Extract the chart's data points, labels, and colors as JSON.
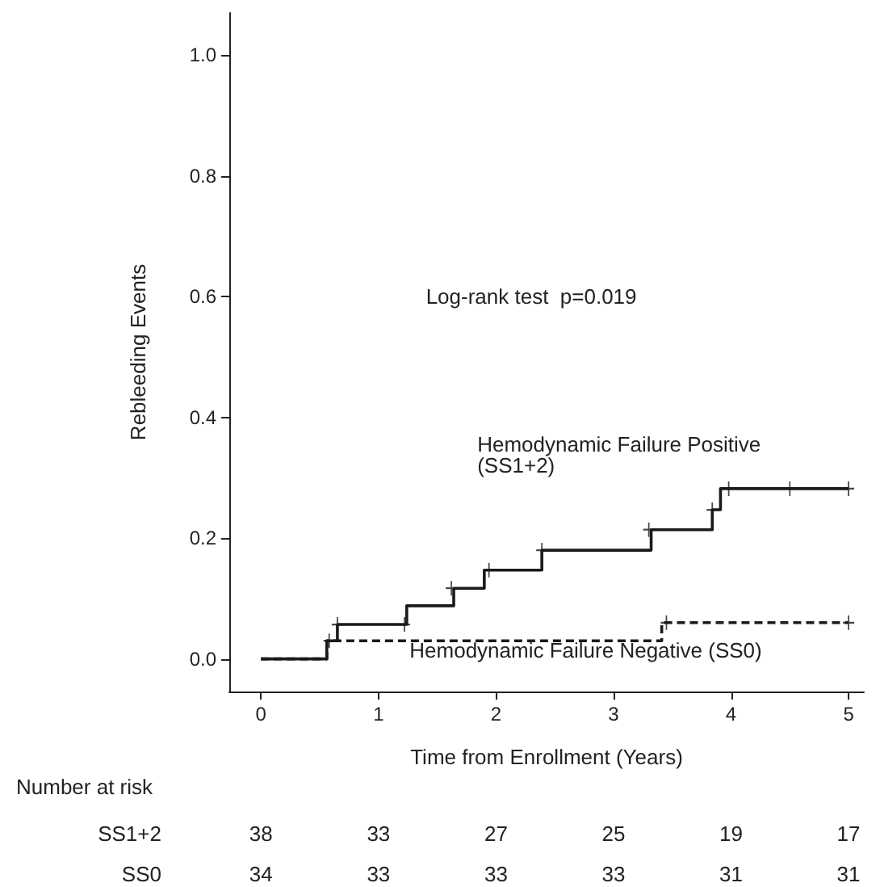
{
  "chart_data": {
    "type": "step",
    "xlabel": "Time from Enrollment (Years)",
    "ylabel": "Rebleeding Events",
    "xlim": [
      -0.27,
      5.13
    ],
    "xticks": [
      0,
      1,
      2,
      3,
      4,
      5
    ],
    "ylim": [
      -0.054,
      1.07
    ],
    "yticks": [
      {
        "value": 0,
        "label": "0.0"
      },
      {
        "value": 0.2,
        "label": "0.2"
      },
      {
        "value": 0.4,
        "label": "0.4"
      },
      {
        "value": 0.6,
        "label": "0.6"
      },
      {
        "value": 0.8,
        "label": "0.8"
      },
      {
        "value": 1,
        "label": "1.0"
      }
    ],
    "grid": false,
    "legend": false,
    "series": [
      {
        "name": "Hemodynamic Failure Positive (SS1+2)",
        "color": "#1a1a1a",
        "line_style": "solid",
        "marker": "none",
        "x": [
          0,
          0.56,
          0.65,
          1.24,
          1.64,
          1.9,
          2.39,
          3.32,
          3.84,
          3.91,
          5.0
        ],
        "values": [
          0,
          0.03,
          0.057,
          0.088,
          0.117,
          0.147,
          0.18,
          0.214,
          0.247,
          0.282,
          0.282
        ]
      },
      {
        "name": "Hemodynamic Failure Negative (SS0)",
        "color": "#1a1a1a",
        "line_style": "dashed",
        "marker": "none",
        "x": [
          0,
          0.56,
          3.41,
          5.0
        ],
        "values": [
          0,
          0.03,
          0.06,
          0.06
        ]
      },
      {
        "type": "scatter",
        "color": "#1a1a1a",
        "marker": "cross",
        "x": [
          0.65,
          1.22,
          1.62,
          1.94,
          2.39,
          3.3,
          3.84,
          3.98,
          4.5,
          5.0
        ],
        "values": [
          0.057,
          0.057,
          0.117,
          0.147,
          0.18,
          0.214,
          0.247,
          0.282,
          0.282,
          0.282
        ]
      },
      {
        "type": "scatter",
        "color": "#1a1a1a",
        "marker": "cross",
        "x": [
          0.58,
          3.45,
          5.0
        ],
        "values": [
          0.03,
          0.06,
          0.06
        ]
      }
    ],
    "annotations": [
      "Log-rank test  p=0.019",
      "Number at risk",
      "SS1+2",
      "38",
      "33",
      "27",
      "25",
      "19",
      "17",
      "SS0",
      "34",
      "33",
      "33",
      "33",
      "31",
      "31"
    ]
  }
}
